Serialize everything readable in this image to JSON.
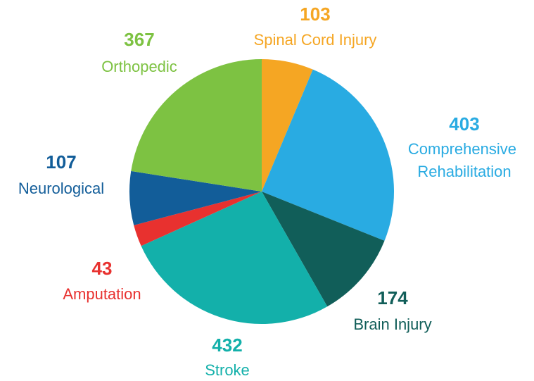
{
  "chart_data": {
    "type": "pie",
    "categories": [
      "Spinal Cord Injury",
      "Comprehensive Rehabilitation",
      "Brain Injury",
      "Stroke",
      "Amputation",
      "Neurological",
      "Orthopedic"
    ],
    "values": [
      103,
      403,
      174,
      432,
      43,
      107,
      367
    ],
    "colors": [
      "#f5a623",
      "#29abe2",
      "#115e59",
      "#13b0aa",
      "#e8312f",
      "#125d99",
      "#7dc242"
    ],
    "label_colors": [
      "#f5a623",
      "#29abe2",
      "#115e59",
      "#13b0aa",
      "#e8312f",
      "#125d99",
      "#7dc242"
    ]
  }
}
